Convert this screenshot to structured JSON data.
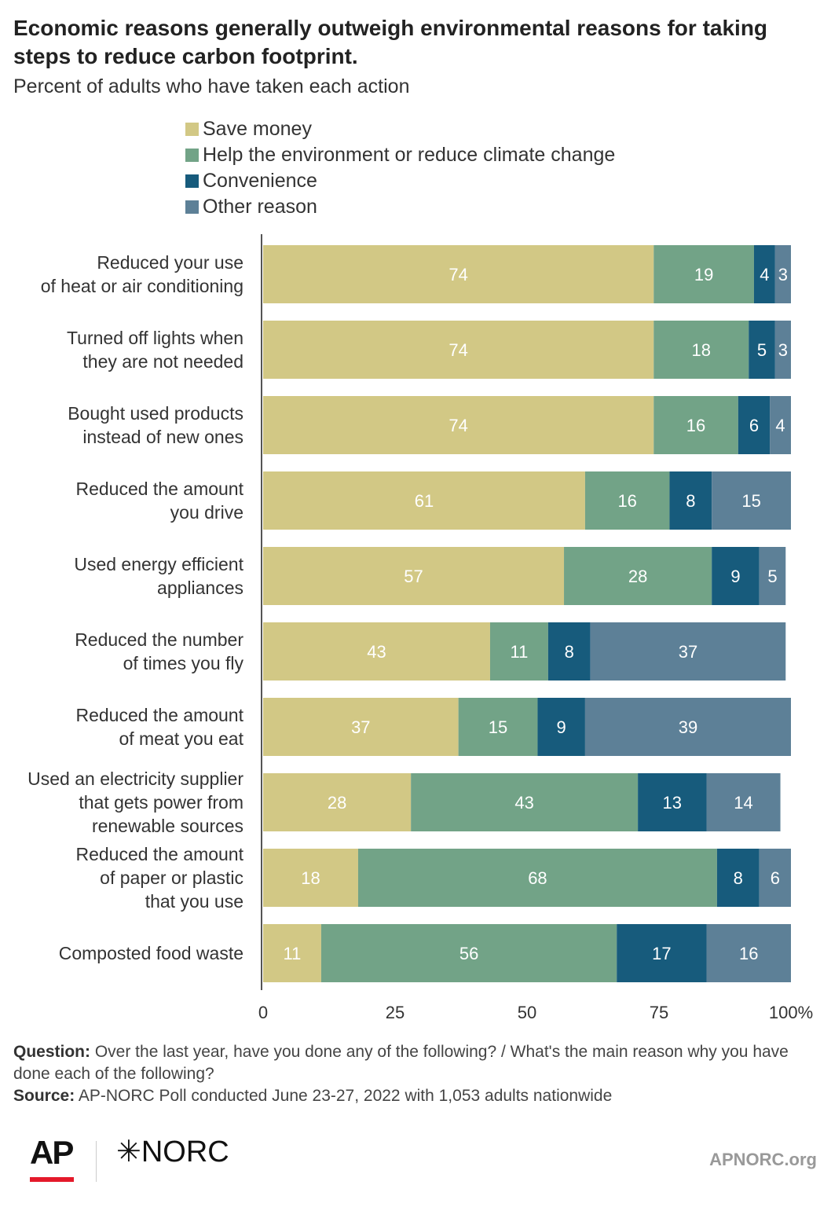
{
  "title": "Economic reasons generally outweigh environmental reasons for taking steps to reduce carbon footprint.",
  "subtitle": "Percent of adults who have taken each action",
  "legend": [
    {
      "label": "Save money",
      "color": "#d2c885"
    },
    {
      "label": "Help the environment or reduce climate change",
      "color": "#72a387"
    },
    {
      "label": "Convenience",
      "color": "#175b7c"
    },
    {
      "label": "Other reason",
      "color": "#5d8097"
    }
  ],
  "chart_data": {
    "type": "bar",
    "orientation": "horizontal",
    "stacked": true,
    "categories": [
      [
        "Reduced your use",
        "of heat or air conditioning"
      ],
      [
        "Turned off lights when",
        "they are not needed"
      ],
      [
        "Bought used products",
        "instead of new ones"
      ],
      [
        "Reduced the amount",
        "you drive"
      ],
      [
        "Used energy efficient",
        "appliances"
      ],
      [
        "Reduced the number",
        "of times you fly"
      ],
      [
        "Reduced the amount",
        "of meat you eat"
      ],
      [
        "Used an electricity supplier",
        "that gets power from",
        "renewable sources"
      ],
      [
        "Reduced the amount",
        "of paper or plastic",
        "that you use"
      ],
      [
        "Composted food waste"
      ]
    ],
    "series": [
      {
        "name": "Save money",
        "color": "#d2c885",
        "values": [
          74,
          74,
          74,
          61,
          57,
          43,
          37,
          28,
          18,
          11
        ]
      },
      {
        "name": "Help the environment or reduce climate change",
        "color": "#72a387",
        "values": [
          19,
          18,
          16,
          16,
          28,
          11,
          15,
          43,
          68,
          56
        ]
      },
      {
        "name": "Convenience",
        "color": "#175b7c",
        "values": [
          4,
          5,
          6,
          8,
          9,
          8,
          9,
          13,
          8,
          17
        ]
      },
      {
        "name": "Other reason",
        "color": "#5d8097",
        "values": [
          3,
          3,
          4,
          15,
          5,
          37,
          39,
          14,
          6,
          16
        ]
      }
    ],
    "xlim": [
      0,
      100
    ],
    "xticks": [
      "0",
      "25",
      "50",
      "75",
      "100%"
    ],
    "xtick_values": [
      0,
      25,
      50,
      75,
      100
    ]
  },
  "footer": {
    "question_label": "Question:",
    "question_text": "Over the last year, have you done any of the following? / What's the main reason why you have done each of the following?",
    "source_label": "Source:",
    "source_text": "AP-NORC Poll conducted June 23-27, 2022 with 1,053 adults nationwide"
  },
  "logos": {
    "ap": "AP",
    "norc": "NORC",
    "site": "APNORC.org"
  }
}
